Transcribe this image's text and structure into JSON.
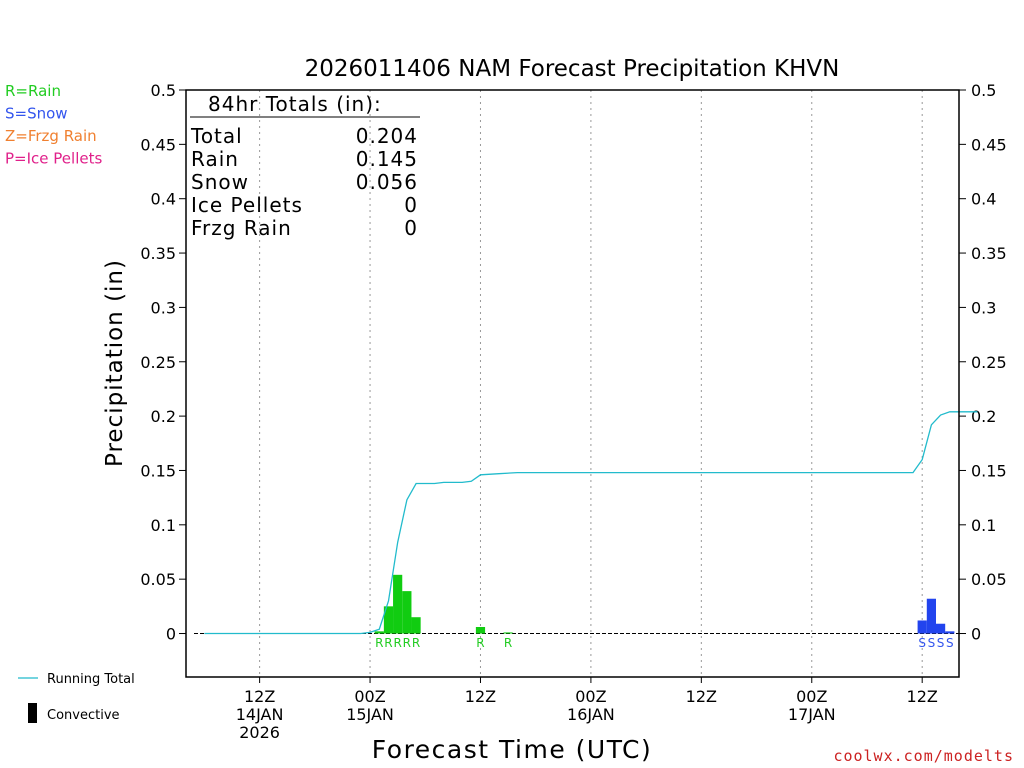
{
  "chart_data": {
    "type": "bar",
    "title": "2026011406 NAM Forecast Precipitation KHVN",
    "xlabel": "Forecast Time (UTC)",
    "ylabel": "Precipitation (in)",
    "ylim": [
      -0.04,
      0.5
    ],
    "yticks": [
      0,
      0.05,
      0.1,
      0.15,
      0.2,
      0.25,
      0.3,
      0.35,
      0.4,
      0.45,
      0.5
    ],
    "xlim_hours_from_init": [
      -2,
      82
    ],
    "x_ticks": [
      {
        "hour": 6,
        "label": "12Z",
        "date": "14JAN",
        "year": "2026"
      },
      {
        "hour": 18,
        "label": "00Z",
        "date": "15JAN",
        "year": ""
      },
      {
        "hour": 30,
        "label": "12Z",
        "date": "",
        "year": ""
      },
      {
        "hour": 42,
        "label": "00Z",
        "date": "16JAN",
        "year": ""
      },
      {
        "hour": 54,
        "label": "12Z",
        "date": "",
        "year": ""
      },
      {
        "hour": 66,
        "label": "00Z",
        "date": "17JAN",
        "year": ""
      },
      {
        "hour": 78,
        "label": "12Z",
        "date": "",
        "year": ""
      }
    ],
    "grid": "vertical-dotted",
    "legend": {
      "ptype_keys": [
        {
          "text": "R=Rain",
          "color": "#22cc22"
        },
        {
          "text": "S=Snow",
          "color": "#3355ee"
        },
        {
          "text": "Z=Frzg Rain",
          "color": "#f08030"
        },
        {
          "text": "P=Ice Pellets",
          "color": "#e0208a"
        }
      ],
      "running_total_label": "Running Total",
      "convective_label": "Convective"
    },
    "totals": {
      "header": "84hr Totals (in):",
      "rows": [
        {
          "label": "Total",
          "value": "0.204"
        },
        {
          "label": "Rain",
          "value": "0.145"
        },
        {
          "label": "Snow",
          "value": "0.056"
        },
        {
          "label": "Ice Pellets",
          "value": "0"
        },
        {
          "label": "Frzg Rain",
          "value": "0"
        }
      ]
    },
    "series": [
      {
        "name": "Rain",
        "color": "#11cc11",
        "bars": [
          {
            "hour": 19,
            "value": 0.002
          },
          {
            "hour": 20,
            "value": 0.025
          },
          {
            "hour": 21,
            "value": 0.054
          },
          {
            "hour": 22,
            "value": 0.039
          },
          {
            "hour": 23,
            "value": 0.015
          },
          {
            "hour": 30,
            "value": 0.006
          },
          {
            "hour": 33,
            "value": 0.001
          }
        ]
      },
      {
        "name": "Snow",
        "color": "#2244ee",
        "bars": [
          {
            "hour": 78,
            "value": 0.012
          },
          {
            "hour": 79,
            "value": 0.032
          },
          {
            "hour": 80,
            "value": 0.009
          },
          {
            "hour": 81,
            "value": 0.002
          }
        ]
      },
      {
        "name": "Running Total",
        "color": "#22bbcc",
        "points": [
          [
            0,
            0
          ],
          [
            17,
            0
          ],
          [
            18,
            0.001
          ],
          [
            19,
            0.004
          ],
          [
            20,
            0.03
          ],
          [
            21,
            0.084
          ],
          [
            22,
            0.123
          ],
          [
            23,
            0.138
          ],
          [
            24,
            0.138
          ],
          [
            25,
            0.138
          ],
          [
            26,
            0.139
          ],
          [
            28,
            0.139
          ],
          [
            29,
            0.14
          ],
          [
            30,
            0.146
          ],
          [
            32,
            0.147
          ],
          [
            34,
            0.148
          ],
          [
            77,
            0.148
          ],
          [
            78,
            0.16
          ],
          [
            79,
            0.192
          ],
          [
            80,
            0.201
          ],
          [
            81,
            0.204
          ],
          [
            84,
            0.204
          ]
        ]
      }
    ],
    "ptype_markers": [
      {
        "hour": 19,
        "text": "R",
        "color": "#22cc22"
      },
      {
        "hour": 20,
        "text": "R",
        "color": "#22cc22"
      },
      {
        "hour": 21,
        "text": "R",
        "color": "#22cc22"
      },
      {
        "hour": 22,
        "text": "R",
        "color": "#22cc22"
      },
      {
        "hour": 23,
        "text": "R",
        "color": "#22cc22"
      },
      {
        "hour": 30,
        "text": "R",
        "color": "#22cc22"
      },
      {
        "hour": 33,
        "text": "R",
        "color": "#22cc22"
      },
      {
        "hour": 78,
        "text": "S",
        "color": "#3355ee"
      },
      {
        "hour": 79,
        "text": "S",
        "color": "#3355ee"
      },
      {
        "hour": 80,
        "text": "S",
        "color": "#3355ee"
      },
      {
        "hour": 81,
        "text": "S",
        "color": "#3355ee"
      }
    ]
  },
  "footer": {
    "credit": "coolwx.com/modelts",
    "credit_color": "#cc2222"
  }
}
